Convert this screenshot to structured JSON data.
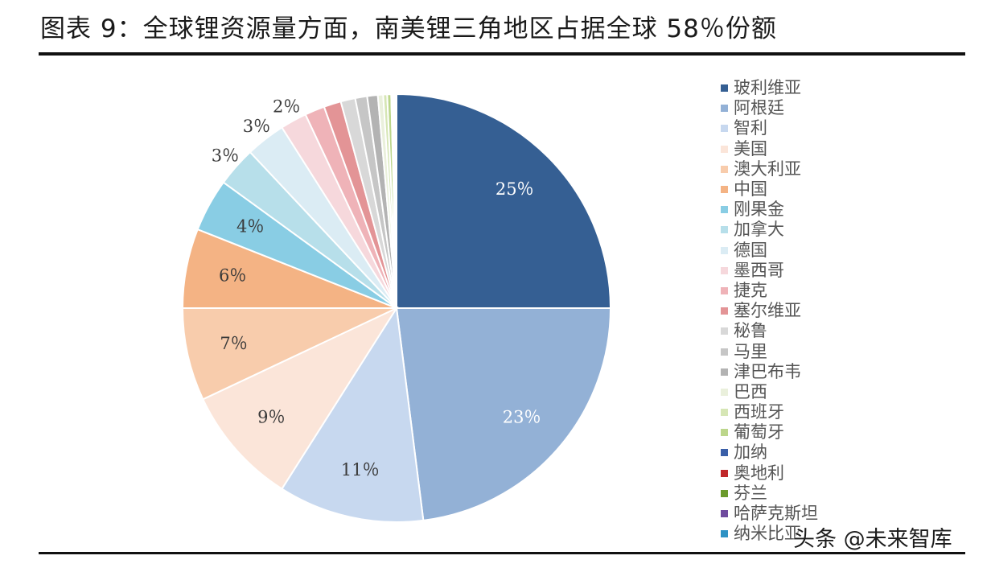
{
  "title": "图表 9：全球锂资源量方面，南美锂三角地区占据全球 58％份额",
  "watermark": "头条 @未来智库",
  "chart_data": {
    "type": "pie",
    "title": "",
    "legend_position": "right",
    "slices": [
      {
        "name": "玻利维亚",
        "value": 25,
        "label": "25％",
        "color": "#355f93"
      },
      {
        "name": "阿根廷",
        "value": 23,
        "label": "23％",
        "color": "#93b1d6"
      },
      {
        "name": "智利",
        "value": 11,
        "label": "11％",
        "color": "#c7d8ef"
      },
      {
        "name": "美国",
        "value": 9,
        "label": "9％",
        "color": "#fbe5d9"
      },
      {
        "name": "澳大利亚",
        "value": 7,
        "label": "7％",
        "color": "#f8ccac"
      },
      {
        "name": "中国",
        "value": 6,
        "label": "6％",
        "color": "#f4b384"
      },
      {
        "name": "刚果金",
        "value": 4,
        "label": "4％",
        "color": "#89cde4"
      },
      {
        "name": "加拿大",
        "value": 3,
        "label": "3％",
        "color": "#b7dfea"
      },
      {
        "name": "德国",
        "value": 3,
        "label": "3％",
        "color": "#dbecf4"
      },
      {
        "name": "墨西哥",
        "value": 2,
        "label": "2％",
        "color": "#f6d8dc"
      },
      {
        "name": "捷克",
        "value": 1.5,
        "label": "",
        "color": "#efb3b8"
      },
      {
        "name": "塞尔维亚",
        "value": 1.3,
        "label": "",
        "color": "#e39496"
      },
      {
        "name": "秘鲁",
        "value": 1.1,
        "label": "",
        "color": "#d8d8d8"
      },
      {
        "name": "马里",
        "value": 0.9,
        "label": "",
        "color": "#c6c6c6"
      },
      {
        "name": "津巴布韦",
        "value": 0.8,
        "label": "",
        "color": "#b3b3b3"
      },
      {
        "name": "巴西",
        "value": 0.4,
        "label": "",
        "color": "#eaf0dc"
      },
      {
        "name": "西班牙",
        "value": 0.3,
        "label": "",
        "color": "#d6e6b5"
      },
      {
        "name": "葡萄牙",
        "value": 0.3,
        "label": "",
        "color": "#bcd68b"
      },
      {
        "name": "加纳",
        "value": 0.1,
        "label": "",
        "color": "#3a5fa8"
      },
      {
        "name": "奥地利",
        "value": 0.1,
        "label": "",
        "color": "#c0282a"
      },
      {
        "name": "芬兰",
        "value": 0.1,
        "label": "",
        "color": "#6b9a2c"
      },
      {
        "name": "哈萨克斯坦",
        "value": 0.05,
        "label": "",
        "color": "#6f4b9e"
      },
      {
        "name": "纳米比亚",
        "value": 0.05,
        "label": "",
        "color": "#2e92c4"
      }
    ]
  }
}
